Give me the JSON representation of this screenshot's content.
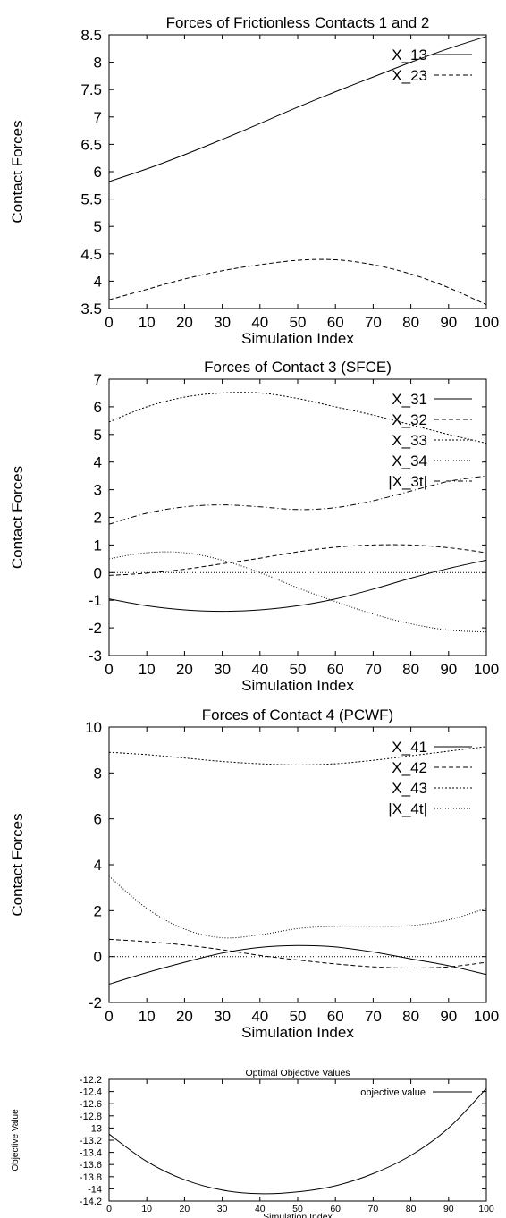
{
  "chart_data": [
    {
      "type": "line",
      "title": "Forces of Frictionless Contacts 1 and 2",
      "xlabel": "Simulation Index",
      "ylabel": "Contact Forces",
      "xlim": [
        0,
        100
      ],
      "ylim": [
        3.5,
        8.5
      ],
      "xticks": [
        "0",
        "10",
        "20",
        "30",
        "40",
        "50",
        "60",
        "70",
        "80",
        "90",
        "100"
      ],
      "yticks": [
        "3.5",
        "4",
        "4.5",
        "5",
        "5.5",
        "6",
        "6.5",
        "7",
        "7.5",
        "8",
        "8.5"
      ],
      "legend_position": "top-right",
      "grid": false,
      "series": [
        {
          "name": "X_13",
          "dash": "solid",
          "x": [
            0,
            10,
            20,
            30,
            40,
            50,
            60,
            70,
            80,
            90,
            100
          ],
          "y": [
            5.82,
            6.05,
            6.31,
            6.59,
            6.88,
            7.18,
            7.46,
            7.73,
            8.0,
            8.25,
            8.47
          ]
        },
        {
          "name": "X_23",
          "dash": "dashed",
          "x": [
            0,
            10,
            20,
            30,
            40,
            50,
            60,
            70,
            80,
            90,
            100
          ],
          "y": [
            3.66,
            3.85,
            4.04,
            4.19,
            4.3,
            4.38,
            4.39,
            4.3,
            4.13,
            3.88,
            3.57
          ]
        }
      ]
    },
    {
      "type": "line",
      "title": "Forces of Contact 3 (SFCE)",
      "xlabel": "Simulation Index",
      "ylabel": "Contact Forces",
      "xlim": [
        0,
        100
      ],
      "ylim": [
        -3,
        7
      ],
      "xticks": [
        "0",
        "10",
        "20",
        "30",
        "40",
        "50",
        "60",
        "70",
        "80",
        "90",
        "100"
      ],
      "yticks": [
        "-3",
        "-2",
        "-1",
        "0",
        "1",
        "2",
        "3",
        "4",
        "5",
        "6",
        "7"
      ],
      "legend_position": "top-right",
      "grid": false,
      "series": [
        {
          "name": "X_31",
          "dash": "solid",
          "x": [
            0,
            10,
            20,
            30,
            40,
            50,
            60,
            70,
            80,
            90,
            100
          ],
          "y": [
            -0.95,
            -1.2,
            -1.35,
            -1.4,
            -1.35,
            -1.2,
            -0.95,
            -0.6,
            -0.2,
            0.15,
            0.45
          ]
        },
        {
          "name": "X_32",
          "dash": "dashed",
          "x": [
            0,
            10,
            20,
            30,
            40,
            50,
            60,
            70,
            80,
            90,
            100
          ],
          "y": [
            -0.1,
            -0.02,
            0.12,
            0.32,
            0.52,
            0.75,
            0.92,
            1.0,
            1.0,
            0.9,
            0.72
          ]
        },
        {
          "name": "X_33",
          "dash": "dotted",
          "x": [
            0,
            10,
            20,
            30,
            40,
            50,
            60,
            70,
            80,
            90,
            100
          ],
          "y": [
            5.45,
            6.0,
            6.35,
            6.5,
            6.5,
            6.3,
            6.0,
            5.7,
            5.35,
            5.0,
            4.68
          ]
        },
        {
          "name": "X_34",
          "dash": "fine-dotted",
          "x": [
            0,
            10,
            20,
            30,
            40,
            50,
            60,
            70,
            80,
            90,
            100
          ],
          "y": [
            0.5,
            0.72,
            0.72,
            0.45,
            0.0,
            -0.55,
            -1.05,
            -1.5,
            -1.85,
            -2.08,
            -2.15
          ]
        },
        {
          "name": "|X_3t|",
          "dash": "dash-dot",
          "x": [
            0,
            10,
            20,
            30,
            40,
            50,
            60,
            70,
            80,
            90,
            100
          ],
          "y": [
            1.75,
            2.15,
            2.38,
            2.45,
            2.38,
            2.28,
            2.35,
            2.6,
            2.95,
            3.3,
            3.5
          ]
        },
        {
          "name": "",
          "dash": "fine-dotted",
          "x": [
            0,
            100
          ],
          "y": [
            0,
            0
          ]
        }
      ]
    },
    {
      "type": "line",
      "title": "Forces of Contact 4 (PCWF)",
      "xlabel": "Simulation Index",
      "ylabel": "Contact Forces",
      "xlim": [
        0,
        100
      ],
      "ylim": [
        -2,
        10
      ],
      "xticks": [
        "0",
        "10",
        "20",
        "30",
        "40",
        "50",
        "60",
        "70",
        "80",
        "90",
        "100"
      ],
      "yticks": [
        "-2",
        "0",
        "2",
        "4",
        "6",
        "8",
        "10"
      ],
      "legend_position": "top-right",
      "grid": false,
      "series": [
        {
          "name": "X_41",
          "dash": "solid",
          "x": [
            0,
            10,
            20,
            30,
            40,
            50,
            60,
            70,
            80,
            90,
            100
          ],
          "y": [
            -1.2,
            -0.7,
            -0.25,
            0.15,
            0.4,
            0.48,
            0.42,
            0.2,
            -0.1,
            -0.4,
            -0.78
          ]
        },
        {
          "name": "X_42",
          "dash": "dashed",
          "x": [
            0,
            10,
            20,
            30,
            40,
            50,
            60,
            70,
            80,
            90,
            100
          ],
          "y": [
            0.75,
            0.65,
            0.5,
            0.3,
            0.05,
            -0.15,
            -0.32,
            -0.45,
            -0.5,
            -0.45,
            -0.25
          ]
        },
        {
          "name": "X_43",
          "dash": "dotted",
          "x": [
            0,
            10,
            20,
            30,
            40,
            50,
            60,
            70,
            80,
            90,
            100
          ],
          "y": [
            8.9,
            8.8,
            8.65,
            8.5,
            8.4,
            8.35,
            8.4,
            8.55,
            8.75,
            8.95,
            9.15
          ]
        },
        {
          "name": "|X_4t|",
          "dash": "fine-dotted",
          "x": [
            0,
            10,
            20,
            30,
            40,
            50,
            60,
            70,
            80,
            90,
            100
          ],
          "y": [
            3.5,
            2.1,
            1.2,
            0.82,
            0.95,
            1.22,
            1.32,
            1.32,
            1.35,
            1.6,
            2.1
          ]
        },
        {
          "name": "",
          "dash": "fine-dotted",
          "x": [
            0,
            100
          ],
          "y": [
            0,
            0
          ]
        }
      ]
    },
    {
      "type": "line",
      "title": "Optimal Objective Values",
      "xlabel": "Simulation Index",
      "ylabel": "Objective Value",
      "xlim": [
        0,
        100
      ],
      "ylim": [
        -14.2,
        -12.2
      ],
      "xticks": [
        "0",
        "10",
        "20",
        "30",
        "40",
        "50",
        "60",
        "70",
        "80",
        "90",
        "100"
      ],
      "yticks": [
        "-14.2",
        "-14",
        "-13.8",
        "-13.6",
        "-13.4",
        "-13.2",
        "-13",
        "-12.8",
        "-12.6",
        "-12.4",
        "-12.2"
      ],
      "legend_position": "top-right",
      "grid": false,
      "series": [
        {
          "name": "objective value",
          "dash": "solid",
          "x": [
            0,
            10,
            20,
            30,
            40,
            50,
            60,
            70,
            80,
            90,
            100
          ],
          "y": [
            -13.1,
            -13.55,
            -13.85,
            -14.02,
            -14.08,
            -14.05,
            -13.95,
            -13.75,
            -13.45,
            -13.0,
            -12.35
          ]
        }
      ]
    }
  ]
}
